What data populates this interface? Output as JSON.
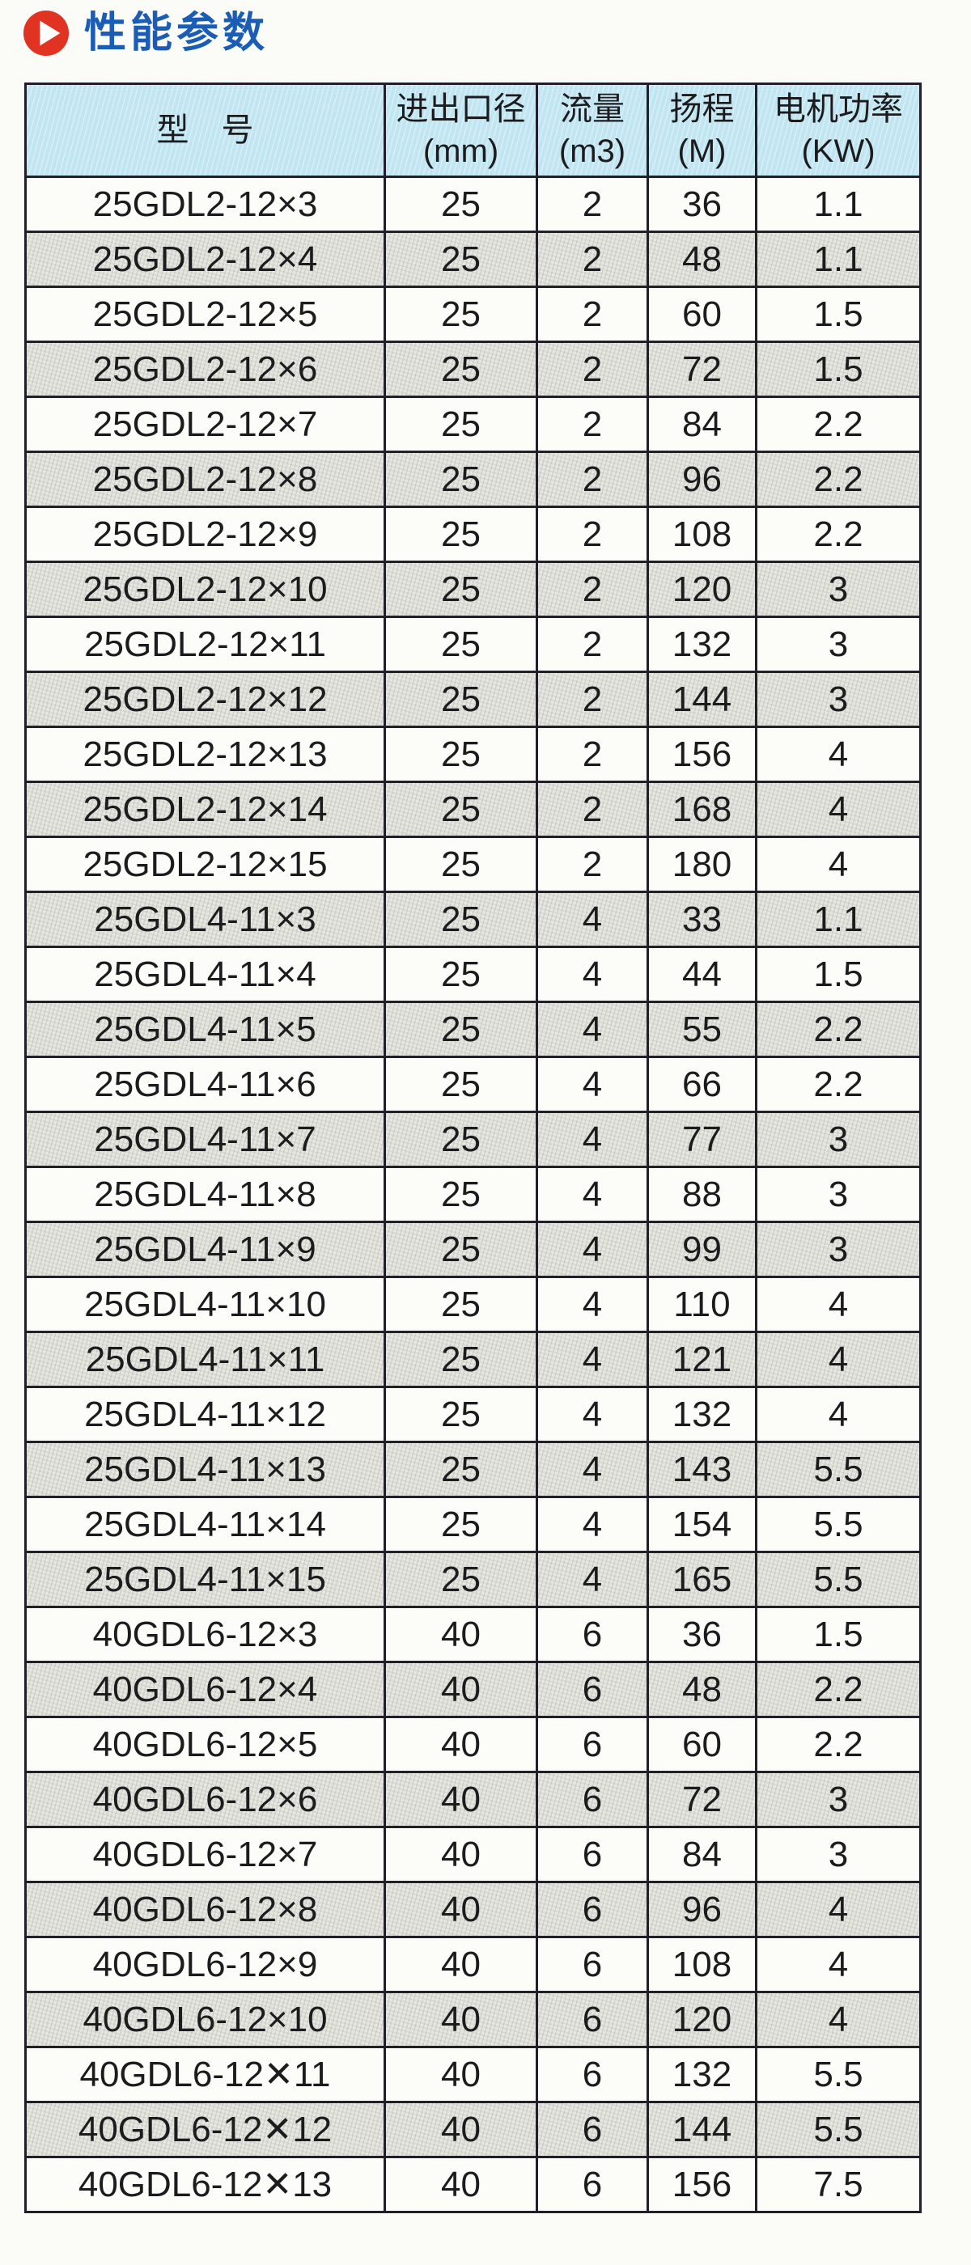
{
  "page": {
    "title": "性能参数"
  },
  "colors": {
    "page_bg": "#fbfbf8",
    "text": "#1c1c1e",
    "title_blue": "#1b5cb4",
    "bullet_red": "#e03322",
    "bullet_white": "#ffffff",
    "header_bg": "#c1e6f2",
    "row_bg": "#fcfcf9",
    "row_alt_bg": "#e7e7e2",
    "border": "#221f2a"
  },
  "icons": {
    "bullet": "play-circle-icon"
  },
  "table": {
    "columns": [
      {
        "label": "型　号"
      },
      {
        "label": "进出口径\n(mm)"
      },
      {
        "label": "流量\n(m3)"
      },
      {
        "label": "扬程\n(M)"
      },
      {
        "label": "电机功率\n(KW)"
      }
    ],
    "rows": [
      [
        "25GDL2-12×3",
        "25",
        "2",
        "36",
        "1.1"
      ],
      [
        "25GDL2-12×4",
        "25",
        "2",
        "48",
        "1.1"
      ],
      [
        "25GDL2-12×5",
        "25",
        "2",
        "60",
        "1.5"
      ],
      [
        "25GDL2-12×6",
        "25",
        "2",
        "72",
        "1.5"
      ],
      [
        "25GDL2-12×7",
        "25",
        "2",
        "84",
        "2.2"
      ],
      [
        "25GDL2-12×8",
        "25",
        "2",
        "96",
        "2.2"
      ],
      [
        "25GDL2-12×9",
        "25",
        "2",
        "108",
        "2.2"
      ],
      [
        "25GDL2-12×10",
        "25",
        "2",
        "120",
        "3"
      ],
      [
        "25GDL2-12×11",
        "25",
        "2",
        "132",
        "3"
      ],
      [
        "25GDL2-12×12",
        "25",
        "2",
        "144",
        "3"
      ],
      [
        "25GDL2-12×13",
        "25",
        "2",
        "156",
        "4"
      ],
      [
        "25GDL2-12×14",
        "25",
        "2",
        "168",
        "4"
      ],
      [
        "25GDL2-12×15",
        "25",
        "2",
        "180",
        "4"
      ],
      [
        "25GDL4-11×3",
        "25",
        "4",
        "33",
        "1.1"
      ],
      [
        "25GDL4-11×4",
        "25",
        "4",
        "44",
        "1.5"
      ],
      [
        "25GDL4-11×5",
        "25",
        "4",
        "55",
        "2.2"
      ],
      [
        "25GDL4-11×6",
        "25",
        "4",
        "66",
        "2.2"
      ],
      [
        "25GDL4-11×7",
        "25",
        "4",
        "77",
        "3"
      ],
      [
        "25GDL4-11×8",
        "25",
        "4",
        "88",
        "3"
      ],
      [
        "25GDL4-11×9",
        "25",
        "4",
        "99",
        "3"
      ],
      [
        "25GDL4-11×10",
        "25",
        "4",
        "110",
        "4"
      ],
      [
        "25GDL4-11×11",
        "25",
        "4",
        "121",
        "4"
      ],
      [
        "25GDL4-11×12",
        "25",
        "4",
        "132",
        "4"
      ],
      [
        "25GDL4-11×13",
        "25",
        "4",
        "143",
        "5.5"
      ],
      [
        "25GDL4-11×14",
        "25",
        "4",
        "154",
        "5.5"
      ],
      [
        "25GDL4-11×15",
        "25",
        "4",
        "165",
        "5.5"
      ],
      [
        "40GDL6-12×3",
        "40",
        "6",
        "36",
        "1.5"
      ],
      [
        "40GDL6-12×4",
        "40",
        "6",
        "48",
        "2.2"
      ],
      [
        "40GDL6-12×5",
        "40",
        "6",
        "60",
        "2.2"
      ],
      [
        "40GDL6-12×6",
        "40",
        "6",
        "72",
        "3"
      ],
      [
        "40GDL6-12×7",
        "40",
        "6",
        "84",
        "3"
      ],
      [
        "40GDL6-12×8",
        "40",
        "6",
        "96",
        "4"
      ],
      [
        "40GDL6-12×9",
        "40",
        "6",
        "108",
        "4"
      ],
      [
        "40GDL6-12×10",
        "40",
        "6",
        "120",
        "4"
      ],
      [
        "40GDL6-12✕11",
        "40",
        "6",
        "132",
        "5.5"
      ],
      [
        "40GDL6-12✕12",
        "40",
        "6",
        "144",
        "5.5"
      ],
      [
        "40GDL6-12✕13",
        "40",
        "6",
        "156",
        "7.5"
      ]
    ]
  }
}
